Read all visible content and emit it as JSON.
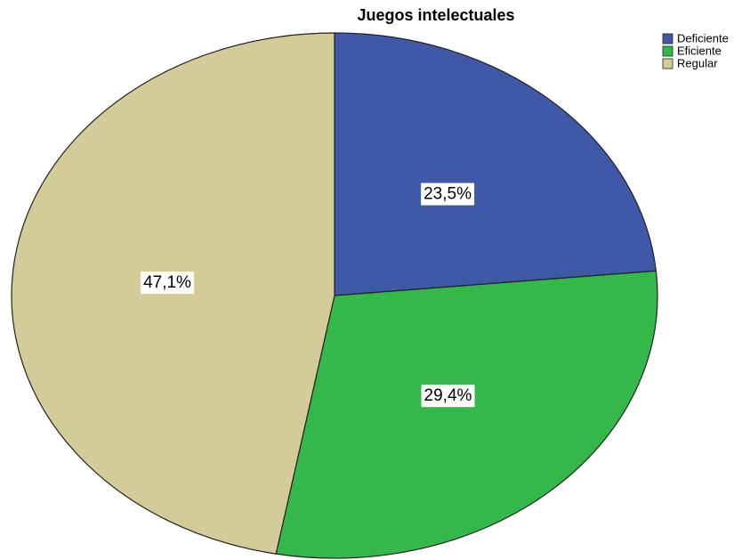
{
  "chart_data": {
    "type": "pie",
    "title": "Juegos intelectuales",
    "categories": [
      "Deficiente",
      "Eficiente",
      "Regular"
    ],
    "values": [
      23.5,
      29.4,
      47.1
    ],
    "value_labels": [
      "23,5%",
      "29,4%",
      "47,1%"
    ],
    "colors": [
      "#3f58a8",
      "#35b84a",
      "#d4cc98"
    ],
    "legend": "top-right"
  }
}
